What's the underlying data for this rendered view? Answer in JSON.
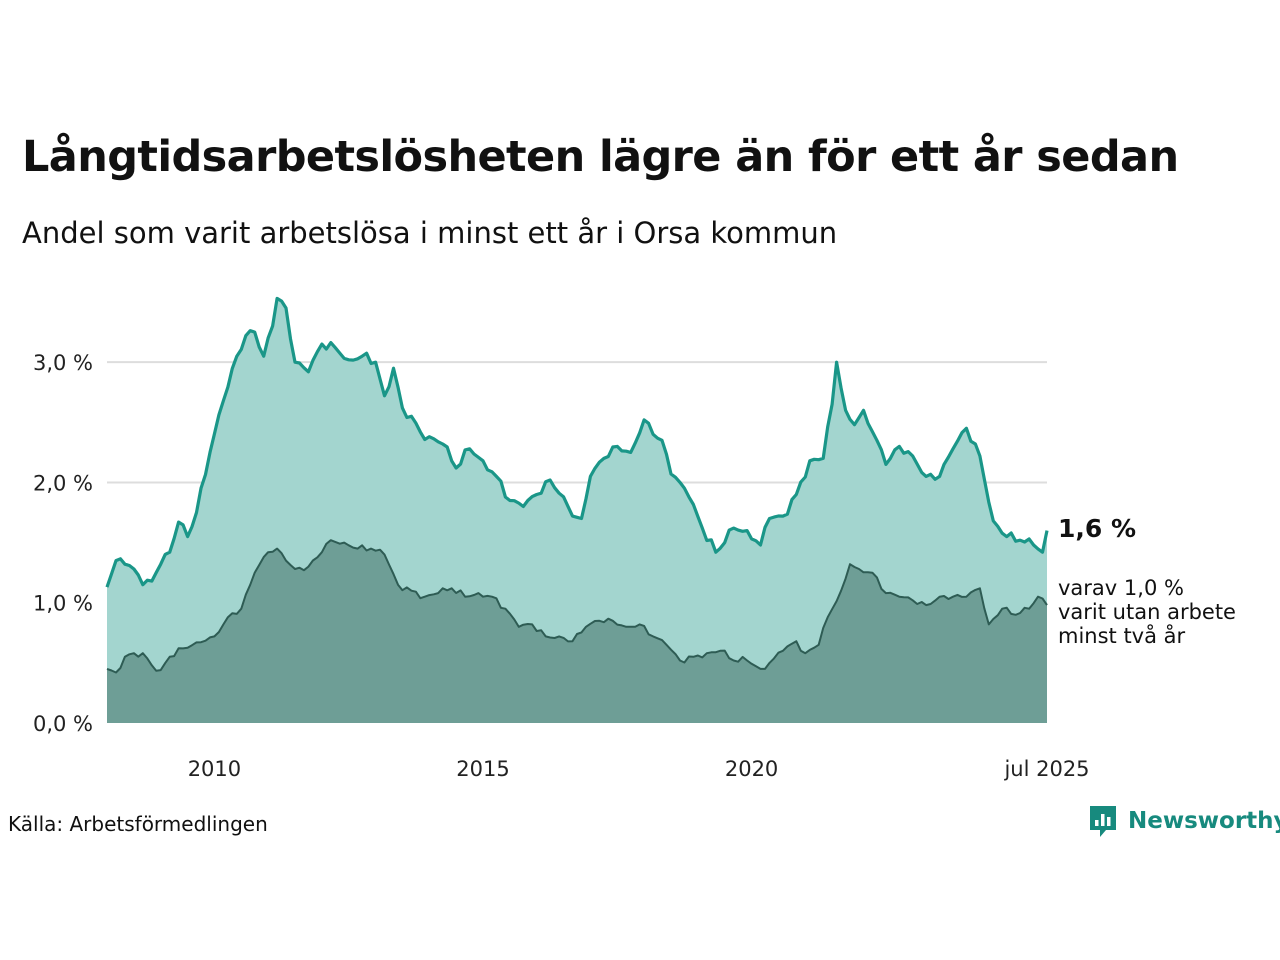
{
  "title": "Långtidsarbetslösheten lägre än för ett år sedan",
  "subtitle": "Andel som varit arbetslösa i minst ett år i Orsa kommun",
  "source": "Källa: Arbetsförmedlingen",
  "brand": "Newsworthy",
  "latest_label": "1,6 %",
  "sub_label_lines": [
    "varav 1,0 %",
    "varit utan arbete",
    "minst två år"
  ],
  "colors": {
    "total_line": "#1a9688",
    "total_fill": "#a3d5cf",
    "sub_line": "#2e5c54",
    "sub_fill": "#6e9e96",
    "grid": "#dddddd",
    "brand": "#178a7e"
  },
  "chart_data": {
    "type": "area",
    "x_start": "2008-01",
    "x_end": "2025-07",
    "x_ticks": [
      {
        "x": "2010-01",
        "label": "2010"
      },
      {
        "x": "2015-01",
        "label": "2015"
      },
      {
        "x": "2020-01",
        "label": "2020"
      },
      {
        "x": "2025-07",
        "label": "jul 2025"
      }
    ],
    "y_ticks": [
      {
        "value": 0,
        "label": "0,0 %"
      },
      {
        "value": 1,
        "label": "1,0 %"
      },
      {
        "value": 2,
        "label": "2,0 %"
      },
      {
        "value": 3,
        "label": "3,0 %"
      }
    ],
    "ylim": [
      0,
      3.6
    ],
    "grid": true,
    "series": [
      {
        "key": "total",
        "keypoints": [
          [
            "2008-01",
            1.13
          ],
          [
            "2008-03",
            1.35
          ],
          [
            "2008-05",
            1.32
          ],
          [
            "2008-07",
            1.28
          ],
          [
            "2008-09",
            1.15
          ],
          [
            "2008-11",
            1.18
          ],
          [
            "2009-01",
            1.32
          ],
          [
            "2009-03",
            1.42
          ],
          [
            "2009-05",
            1.67
          ],
          [
            "2009-07",
            1.55
          ],
          [
            "2009-09",
            1.75
          ],
          [
            "2009-12",
            2.25
          ],
          [
            "2010-03",
            2.68
          ],
          [
            "2010-06",
            3.05
          ],
          [
            "2010-08",
            3.22
          ],
          [
            "2010-10",
            3.25
          ],
          [
            "2010-12",
            3.05
          ],
          [
            "2011-02",
            3.3
          ],
          [
            "2011-03",
            3.53
          ],
          [
            "2011-05",
            3.45
          ],
          [
            "2011-07",
            3.0
          ],
          [
            "2011-10",
            2.92
          ],
          [
            "2012-01",
            3.15
          ],
          [
            "2012-04",
            3.12
          ],
          [
            "2012-07",
            3.02
          ],
          [
            "2012-10",
            3.05
          ],
          [
            "2013-01",
            3.0
          ],
          [
            "2013-03",
            2.72
          ],
          [
            "2013-05",
            2.95
          ],
          [
            "2013-07",
            2.62
          ],
          [
            "2013-09",
            2.55
          ],
          [
            "2013-11",
            2.42
          ],
          [
            "2014-01",
            2.38
          ],
          [
            "2014-04",
            2.32
          ],
          [
            "2014-07",
            2.12
          ],
          [
            "2014-10",
            2.28
          ],
          [
            "2015-01",
            2.18
          ],
          [
            "2015-04",
            2.05
          ],
          [
            "2015-07",
            1.85
          ],
          [
            "2015-10",
            1.8
          ],
          [
            "2016-01",
            1.9
          ],
          [
            "2016-04",
            2.02
          ],
          [
            "2016-07",
            1.88
          ],
          [
            "2016-09",
            1.72
          ],
          [
            "2016-11",
            1.7
          ],
          [
            "2017-01",
            2.05
          ],
          [
            "2017-04",
            2.2
          ],
          [
            "2017-07",
            2.3
          ],
          [
            "2017-10",
            2.25
          ],
          [
            "2018-01",
            2.52
          ],
          [
            "2018-03",
            2.4
          ],
          [
            "2018-05",
            2.35
          ],
          [
            "2018-07",
            2.07
          ],
          [
            "2018-09",
            2.0
          ],
          [
            "2018-11",
            1.88
          ],
          [
            "2019-02",
            1.62
          ],
          [
            "2019-05",
            1.42
          ],
          [
            "2019-07",
            1.5
          ],
          [
            "2019-09",
            1.62
          ],
          [
            "2019-12",
            1.6
          ],
          [
            "2020-03",
            1.48
          ],
          [
            "2020-05",
            1.7
          ],
          [
            "2020-08",
            1.72
          ],
          [
            "2020-11",
            1.9
          ],
          [
            "2021-02",
            2.18
          ],
          [
            "2021-05",
            2.2
          ],
          [
            "2021-07",
            2.65
          ],
          [
            "2021-08",
            3.0
          ],
          [
            "2021-10",
            2.6
          ],
          [
            "2021-12",
            2.48
          ],
          [
            "2022-02",
            2.6
          ],
          [
            "2022-05",
            2.35
          ],
          [
            "2022-07",
            2.15
          ],
          [
            "2022-10",
            2.3
          ],
          [
            "2023-01",
            2.22
          ],
          [
            "2023-04",
            2.05
          ],
          [
            "2023-07",
            2.05
          ],
          [
            "2023-10",
            2.28
          ],
          [
            "2024-01",
            2.45
          ],
          [
            "2024-04",
            2.22
          ],
          [
            "2024-07",
            1.68
          ],
          [
            "2024-10",
            1.55
          ],
          [
            "2025-01",
            1.52
          ],
          [
            "2025-04",
            1.48
          ],
          [
            "2025-06",
            1.42
          ],
          [
            "2025-07",
            1.6
          ]
        ]
      },
      {
        "key": "two_years",
        "keypoints": [
          [
            "2008-01",
            0.45
          ],
          [
            "2008-03",
            0.42
          ],
          [
            "2008-05",
            0.55
          ],
          [
            "2008-07",
            0.58
          ],
          [
            "2008-09",
            0.58
          ],
          [
            "2008-11",
            0.48
          ],
          [
            "2009-01",
            0.44
          ],
          [
            "2009-03",
            0.55
          ],
          [
            "2009-06",
            0.62
          ],
          [
            "2009-09",
            0.67
          ],
          [
            "2010-01",
            0.72
          ],
          [
            "2010-04",
            0.88
          ],
          [
            "2010-07",
            0.95
          ],
          [
            "2010-10",
            1.25
          ],
          [
            "2011-01",
            1.42
          ],
          [
            "2011-03",
            1.45
          ],
          [
            "2011-05",
            1.35
          ],
          [
            "2011-07",
            1.28
          ],
          [
            "2011-10",
            1.3
          ],
          [
            "2012-01",
            1.42
          ],
          [
            "2012-03",
            1.52
          ],
          [
            "2012-06",
            1.5
          ],
          [
            "2012-09",
            1.45
          ],
          [
            "2012-12",
            1.45
          ],
          [
            "2013-03",
            1.4
          ],
          [
            "2013-06",
            1.15
          ],
          [
            "2013-09",
            1.1
          ],
          [
            "2013-12",
            1.05
          ],
          [
            "2014-03",
            1.08
          ],
          [
            "2014-06",
            1.12
          ],
          [
            "2014-09",
            1.05
          ],
          [
            "2014-12",
            1.08
          ],
          [
            "2015-03",
            1.05
          ],
          [
            "2015-06",
            0.95
          ],
          [
            "2015-09",
            0.8
          ],
          [
            "2015-12",
            0.82
          ],
          [
            "2016-03",
            0.72
          ],
          [
            "2016-06",
            0.72
          ],
          [
            "2016-09",
            0.68
          ],
          [
            "2016-12",
            0.8
          ],
          [
            "2017-03",
            0.85
          ],
          [
            "2017-06",
            0.85
          ],
          [
            "2017-09",
            0.8
          ],
          [
            "2017-12",
            0.82
          ],
          [
            "2018-03",
            0.72
          ],
          [
            "2018-06",
            0.65
          ],
          [
            "2018-09",
            0.52
          ],
          [
            "2018-12",
            0.55
          ],
          [
            "2019-03",
            0.58
          ],
          [
            "2019-06",
            0.6
          ],
          [
            "2019-09",
            0.52
          ],
          [
            "2019-12",
            0.52
          ],
          [
            "2020-03",
            0.45
          ],
          [
            "2020-05",
            0.5
          ],
          [
            "2020-08",
            0.6
          ],
          [
            "2020-11",
            0.68
          ],
          [
            "2021-01",
            0.58
          ],
          [
            "2021-04",
            0.65
          ],
          [
            "2021-06",
            0.88
          ],
          [
            "2021-09",
            1.1
          ],
          [
            "2021-11",
            1.32
          ],
          [
            "2022-01",
            1.28
          ],
          [
            "2022-04",
            1.25
          ],
          [
            "2022-07",
            1.08
          ],
          [
            "2022-10",
            1.05
          ],
          [
            "2023-01",
            1.02
          ],
          [
            "2023-04",
            0.98
          ],
          [
            "2023-07",
            1.05
          ],
          [
            "2023-10",
            1.05
          ],
          [
            "2024-01",
            1.05
          ],
          [
            "2024-04",
            1.12
          ],
          [
            "2024-06",
            0.82
          ],
          [
            "2024-09",
            0.95
          ],
          [
            "2024-12",
            0.9
          ],
          [
            "2025-03",
            0.95
          ],
          [
            "2025-05",
            1.05
          ],
          [
            "2025-07",
            0.98
          ]
        ]
      }
    ]
  }
}
